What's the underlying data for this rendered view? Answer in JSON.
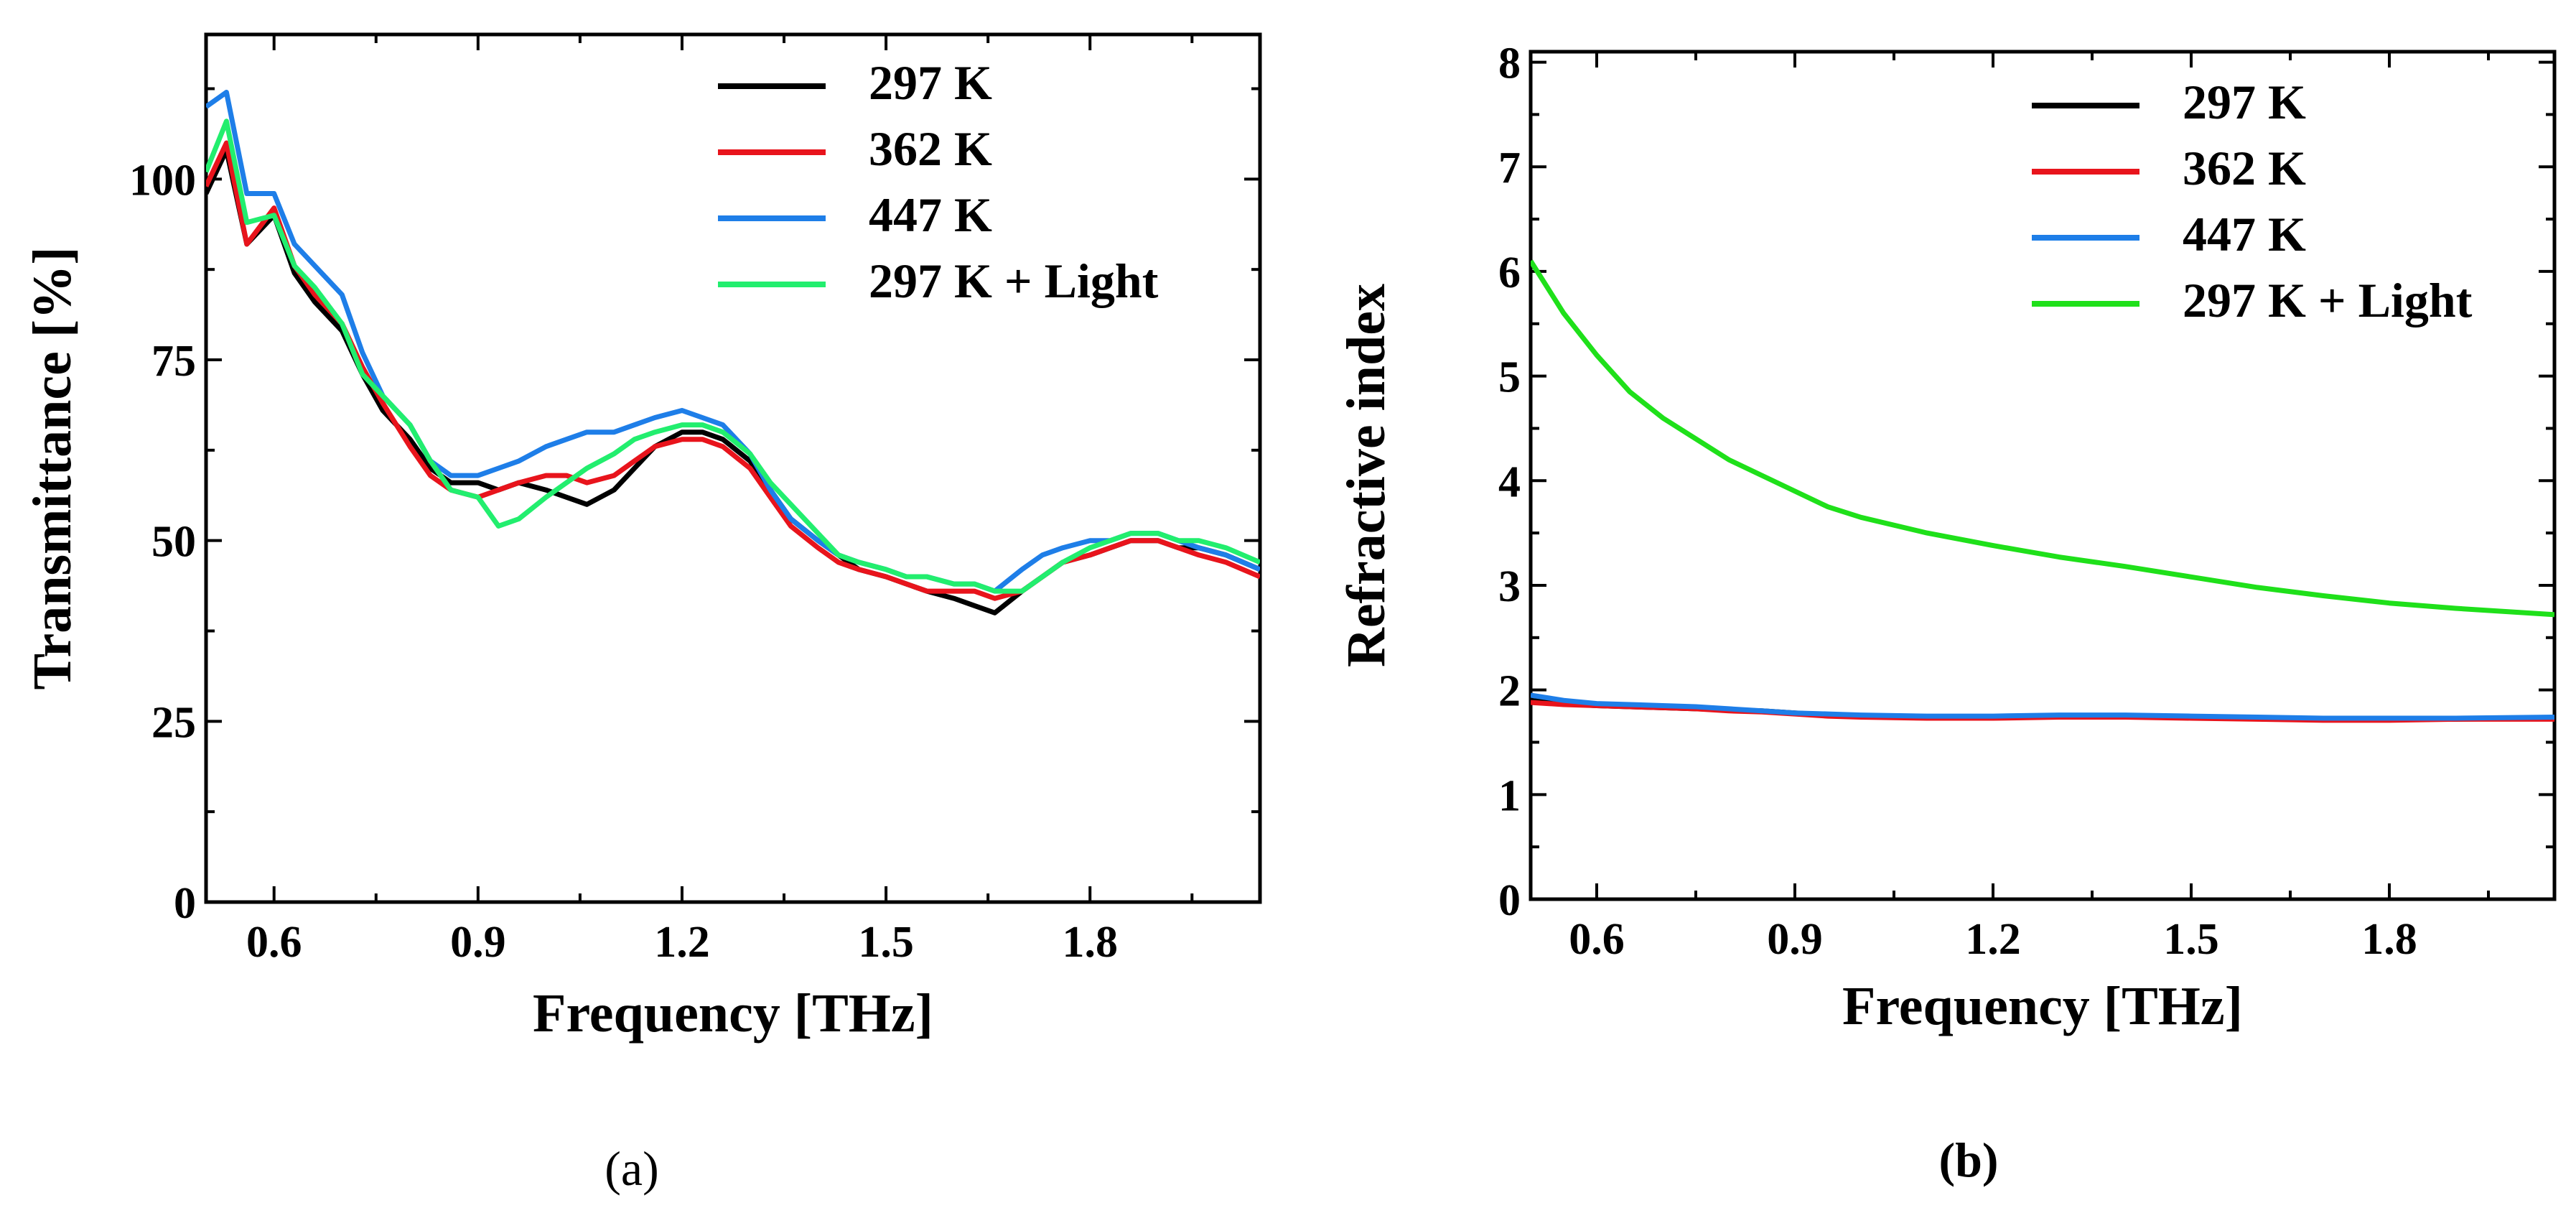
{
  "chart_data": [
    {
      "type": "line",
      "panel": "a",
      "panel_label": "(a)",
      "xlabel": "Frequency [THz]",
      "ylabel": "Transmittance [%]",
      "xlim": [
        0.5,
        2.05
      ],
      "ylim": [
        0,
        120
      ],
      "xticks": [
        0.6,
        0.9,
        1.2,
        1.5,
        1.8
      ],
      "xtick_labels": [
        "0.6",
        "0.9",
        "1.2",
        "1.5",
        "1.8"
      ],
      "yticks": [
        0,
        25,
        50,
        75,
        100
      ],
      "ytick_labels": [
        "0",
        "25",
        "50",
        "75",
        "100"
      ],
      "legend_position": "top-right",
      "x": [
        0.5,
        0.53,
        0.56,
        0.6,
        0.63,
        0.66,
        0.7,
        0.73,
        0.76,
        0.8,
        0.83,
        0.86,
        0.9,
        0.93,
        0.96,
        1.0,
        1.03,
        1.06,
        1.1,
        1.13,
        1.16,
        1.2,
        1.23,
        1.26,
        1.3,
        1.33,
        1.36,
        1.4,
        1.43,
        1.46,
        1.5,
        1.53,
        1.56,
        1.6,
        1.63,
        1.66,
        1.7,
        1.73,
        1.76,
        1.8,
        1.83,
        1.86,
        1.9,
        1.93,
        1.96,
        2.0,
        2.05
      ],
      "series": [
        {
          "name": "297 K",
          "color": "#000000",
          "values": [
            98,
            104,
            91,
            95,
            87,
            83,
            79,
            73,
            68,
            64,
            60,
            58,
            58,
            57,
            58,
            57,
            56,
            55,
            57,
            60,
            63,
            65,
            65,
            64,
            61,
            57,
            53,
            50,
            48,
            46,
            45,
            44,
            43,
            42,
            41,
            40,
            43,
            45,
            47,
            48,
            49,
            50,
            50,
            49,
            49,
            48,
            46
          ]
        },
        {
          "name": "362 K",
          "color": "#e8141c",
          "values": [
            99,
            105,
            91,
            96,
            88,
            84,
            80,
            74,
            69,
            63,
            59,
            57,
            56,
            57,
            58,
            59,
            59,
            58,
            59,
            61,
            63,
            64,
            64,
            63,
            60,
            56,
            52,
            49,
            47,
            46,
            45,
            44,
            43,
            43,
            43,
            42,
            43,
            45,
            47,
            48,
            49,
            50,
            50,
            49,
            48,
            47,
            45
          ]
        },
        {
          "name": "447 K",
          "color": "#1e7ee8",
          "values": [
            110,
            112,
            98,
            98,
            91,
            88,
            84,
            76,
            70,
            66,
            61,
            59,
            59,
            60,
            61,
            63,
            64,
            65,
            65,
            66,
            67,
            68,
            67,
            66,
            62,
            57,
            53,
            50,
            48,
            47,
            46,
            45,
            45,
            44,
            44,
            43,
            46,
            48,
            49,
            50,
            50,
            51,
            51,
            50,
            49,
            48,
            46
          ]
        },
        {
          "name": "297 K + Light",
          "color": "#22ee6e",
          "values": [
            101,
            108,
            94,
            95,
            88,
            85,
            80,
            73,
            70,
            66,
            61,
            57,
            56,
            52,
            53,
            56,
            58,
            60,
            62,
            64,
            65,
            66,
            66,
            65,
            62,
            58,
            55,
            51,
            48,
            47,
            46,
            45,
            45,
            44,
            44,
            43,
            43,
            45,
            47,
            49,
            50,
            51,
            51,
            50,
            50,
            49,
            47
          ]
        }
      ]
    },
    {
      "type": "line",
      "panel": "b",
      "panel_label": "(b)",
      "xlabel": "Frequency [THz]",
      "ylabel": "Refractive index",
      "xlim": [
        0.5,
        2.05
      ],
      "ylim": [
        0,
        8.1
      ],
      "xticks": [
        0.6,
        0.9,
        1.2,
        1.5,
        1.8
      ],
      "xtick_labels": [
        "0.6",
        "0.9",
        "1.2",
        "1.5",
        "1.8"
      ],
      "yticks": [
        0,
        1,
        2,
        3,
        4,
        5,
        6,
        7,
        8
      ],
      "ytick_labels": [
        "0",
        "1",
        "2",
        "3",
        "4",
        "5",
        "6",
        "7",
        "8"
      ],
      "legend_position": "top-right",
      "x": [
        0.5,
        0.55,
        0.6,
        0.65,
        0.7,
        0.75,
        0.8,
        0.85,
        0.9,
        0.95,
        1.0,
        1.1,
        1.2,
        1.3,
        1.4,
        1.5,
        1.6,
        1.7,
        1.8,
        1.9,
        2.05
      ],
      "series": [
        {
          "name": "297 K",
          "color": "#000000",
          "values": [
            1.9,
            1.87,
            1.85,
            1.84,
            1.83,
            1.82,
            1.81,
            1.8,
            1.78,
            1.76,
            1.75,
            1.74,
            1.74,
            1.75,
            1.75,
            1.74,
            1.73,
            1.72,
            1.72,
            1.72,
            1.73
          ]
        },
        {
          "name": "362 K",
          "color": "#e8141c",
          "values": [
            1.88,
            1.86,
            1.85,
            1.84,
            1.83,
            1.82,
            1.8,
            1.79,
            1.77,
            1.75,
            1.74,
            1.73,
            1.73,
            1.74,
            1.74,
            1.73,
            1.72,
            1.71,
            1.71,
            1.72,
            1.72
          ]
        },
        {
          "name": "447 K",
          "color": "#1e7ee8",
          "values": [
            1.95,
            1.9,
            1.87,
            1.86,
            1.85,
            1.84,
            1.82,
            1.8,
            1.78,
            1.77,
            1.76,
            1.75,
            1.75,
            1.76,
            1.76,
            1.75,
            1.74,
            1.73,
            1.73,
            1.73,
            1.74
          ]
        },
        {
          "name": "297 K + Light",
          "color": "#1fe01a",
          "values": [
            6.1,
            5.6,
            5.2,
            4.85,
            4.6,
            4.4,
            4.2,
            4.05,
            3.9,
            3.75,
            3.65,
            3.5,
            3.38,
            3.27,
            3.18,
            3.08,
            2.98,
            2.9,
            2.83,
            2.78,
            2.72
          ]
        }
      ]
    }
  ]
}
